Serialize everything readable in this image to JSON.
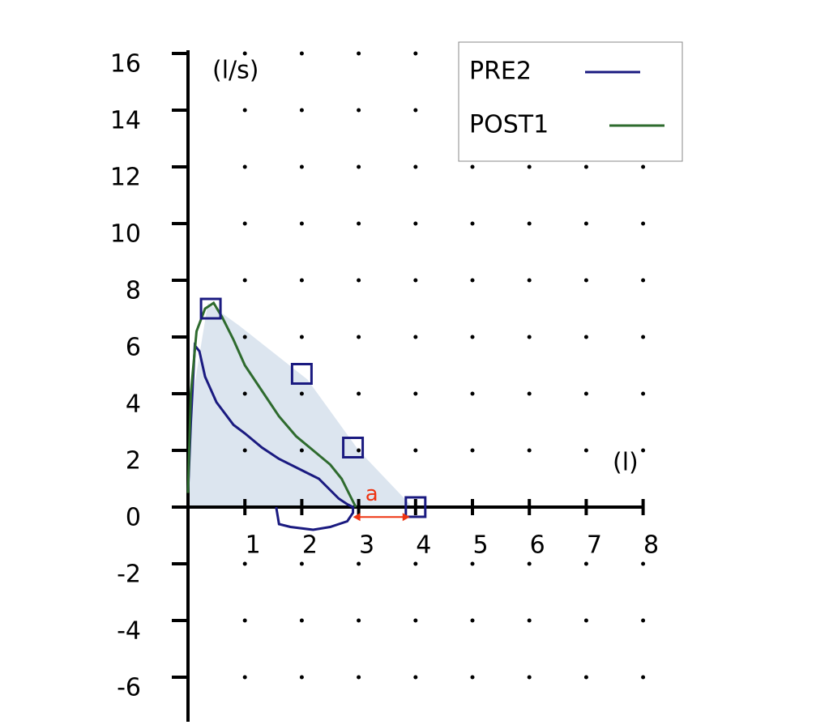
{
  "chart_data": {
    "type": "line",
    "y_label": "(l/s)",
    "x_label": "(l)",
    "xlim": [
      0,
      8
    ],
    "ylim": [
      -7.5,
      16
    ],
    "xticks": [
      1,
      2,
      3,
      4,
      5,
      6,
      7,
      8
    ],
    "yticks": [
      16,
      14,
      12,
      10,
      8,
      6,
      4,
      2,
      0,
      -2,
      -4,
      -6
    ],
    "grid": "dots",
    "legend": "top-right",
    "predicted_area": {
      "color": "#dce5ef",
      "x": [
        0,
        0.05,
        0.35,
        0.9,
        2.1,
        3.0,
        3.9,
        3.9
      ],
      "y": [
        0,
        3.5,
        7.2,
        6.4,
        4.5,
        2.0,
        0.1,
        0
      ]
    },
    "markers": {
      "color": "#1a1a80",
      "x": [
        0.4,
        2,
        2.9,
        4
      ],
      "y": [
        7,
        4.7,
        2.1,
        0
      ]
    },
    "annotation": {
      "text": "a",
      "color": "#ee3311",
      "x": [
        2.9,
        3.9
      ],
      "y": -0.35
    },
    "series": [
      {
        "name": "PRE2",
        "color": "#1a1a80",
        "x": [
          0,
          0.05,
          0.12,
          0.2,
          0.3,
          0.5,
          0.8,
          1.0,
          1.3,
          1.6,
          2.0,
          2.3,
          2.5,
          2.65,
          2.8,
          2.9,
          2.9,
          2.8,
          2.5,
          2.2,
          1.8,
          1.6,
          1.55
        ],
        "y": [
          0.5,
          3,
          5.7,
          5.5,
          4.6,
          3.7,
          2.9,
          2.6,
          2.1,
          1.7,
          1.3,
          1.0,
          0.6,
          0.3,
          0.1,
          0,
          -0.2,
          -0.5,
          -0.7,
          -0.8,
          -0.7,
          -0.6,
          0
        ]
      },
      {
        "name": "POST1",
        "color": "#2e6b2e",
        "x": [
          0,
          0.05,
          0.15,
          0.3,
          0.45,
          0.6,
          0.8,
          1.0,
          1.3,
          1.6,
          1.9,
          2.2,
          2.5,
          2.7,
          2.85,
          2.95
        ],
        "y": [
          0.5,
          4,
          6.2,
          7.0,
          7.2,
          6.7,
          5.9,
          5.0,
          4.1,
          3.2,
          2.5,
          2.0,
          1.5,
          1.0,
          0.4,
          0
        ]
      }
    ]
  }
}
